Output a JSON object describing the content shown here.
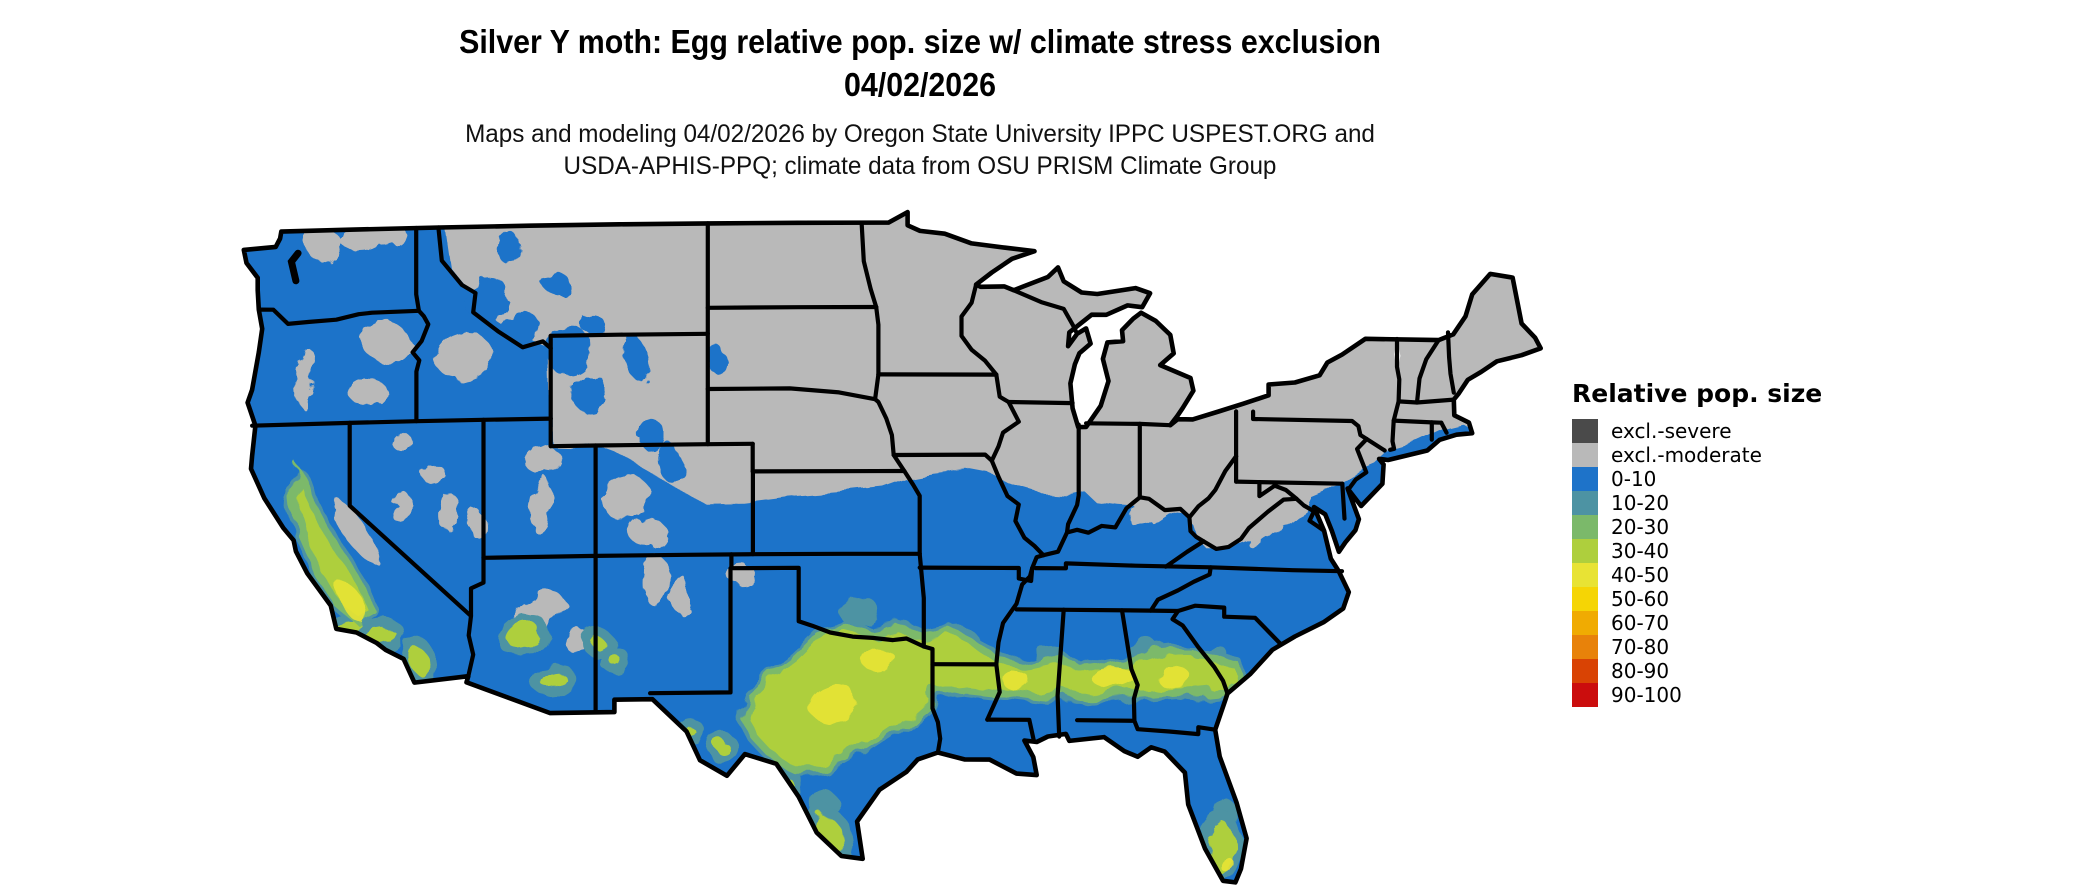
{
  "title": {
    "line1": "Silver Y moth: Egg relative pop. size w/ climate stress exclusion",
    "line2": "04/02/2026"
  },
  "subtitle": {
    "line1": "Maps and modeling 04/02/2026 by Oregon State University IPPC USPEST.ORG and",
    "line2": "USDA-APHIS-PPQ; climate data from OSU PRISM Climate Group"
  },
  "legend": {
    "title": "Relative pop. size",
    "items": [
      {
        "label": "excl.-severe",
        "color": "#4a4a4a"
      },
      {
        "label": "excl.-moderate",
        "color": "#b9b9b9"
      },
      {
        "label": "0-10",
        "color": "#1e73c9"
      },
      {
        "label": "10-20",
        "color": "#4d93a3"
      },
      {
        "label": "20-30",
        "color": "#7bb96a"
      },
      {
        "label": "30-40",
        "color": "#aecf3d"
      },
      {
        "label": "40-50",
        "color": "#e8e334"
      },
      {
        "label": "50-60",
        "color": "#f5d505"
      },
      {
        "label": "60-70",
        "color": "#f0ab02"
      },
      {
        "label": "70-80",
        "color": "#e8820a"
      },
      {
        "label": "80-90",
        "color": "#d94304"
      },
      {
        "label": "90-100",
        "color": "#cb0d0d"
      }
    ]
  },
  "map": {
    "region": "Contiguous United States",
    "background": "#ffffff",
    "state_border_color": "#000000",
    "excluded_moderate_fill": "#b9b9b9",
    "population_low_fill": "#1e73c9",
    "band_teal_fill": "#4d93a3",
    "band_green_fill": "#7bb96a",
    "band_yellowgreen_fill": "#aecf3d",
    "band_yellow_fill": "#e8e334"
  }
}
